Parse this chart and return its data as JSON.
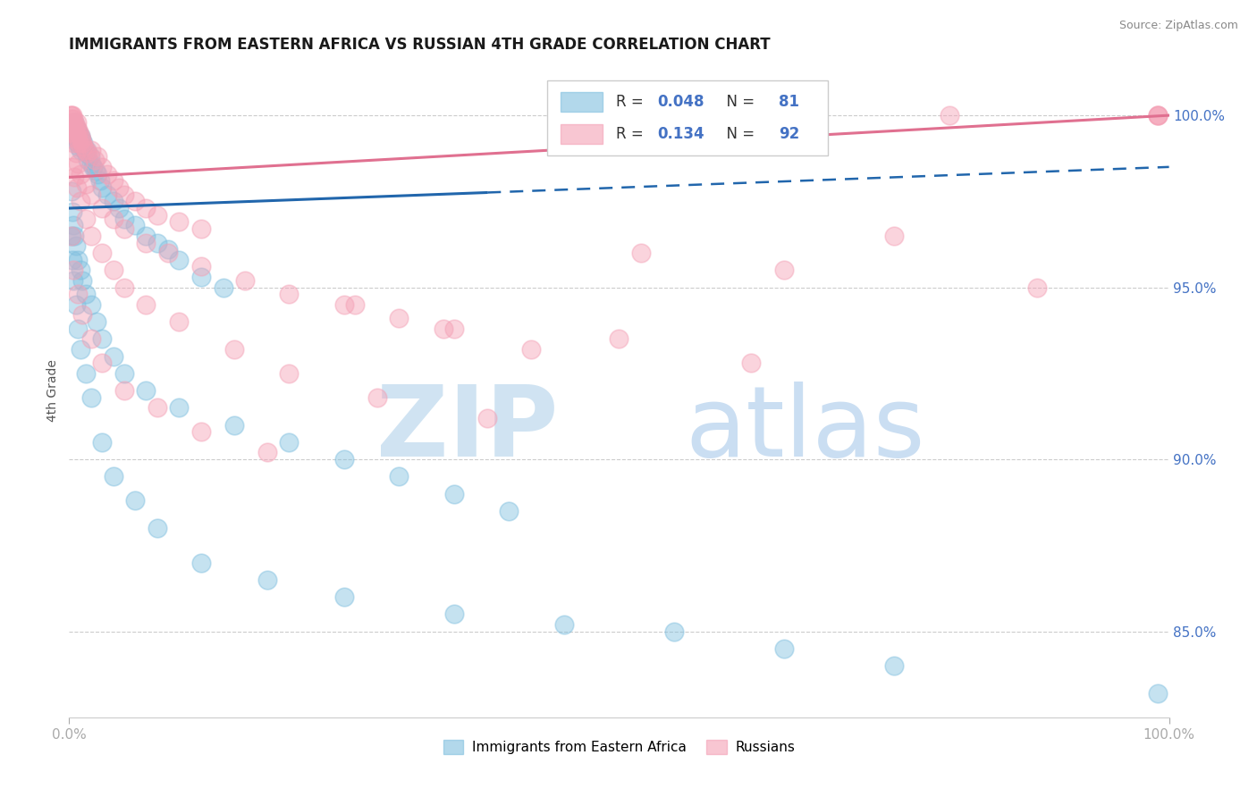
{
  "title": "IMMIGRANTS FROM EASTERN AFRICA VS RUSSIAN 4TH GRADE CORRELATION CHART",
  "source": "Source: ZipAtlas.com",
  "ylabel": "4th Grade",
  "watermark_zip": "ZIP",
  "watermark_atlas": "atlas",
  "blue_R": 0.048,
  "blue_N": 81,
  "pink_R": 0.134,
  "pink_N": 92,
  "blue_color": "#7fbfdf",
  "pink_color": "#f4a0b5",
  "blue_line_color": "#2166ac",
  "pink_line_color": "#e07090",
  "xlim": [
    0.0,
    100.0
  ],
  "ylim": [
    82.5,
    101.5
  ],
  "yticks": [
    85.0,
    90.0,
    95.0,
    100.0
  ],
  "ytick_labels": [
    "85.0%",
    "90.0%",
    "95.0%",
    "100.0%"
  ],
  "blue_line_start_x": 0.0,
  "blue_line_start_y": 97.3,
  "blue_line_end_x": 100.0,
  "blue_line_end_y": 98.5,
  "blue_solid_end_x": 38.0,
  "pink_line_start_x": 0.0,
  "pink_line_start_y": 98.2,
  "pink_line_end_x": 100.0,
  "pink_line_end_y": 100.0,
  "blue_scatter_x": [
    0.3,
    0.4,
    0.5,
    0.5,
    0.6,
    0.6,
    0.7,
    0.7,
    0.8,
    0.8,
    0.9,
    1.0,
    1.0,
    1.1,
    1.2,
    1.3,
    1.4,
    1.5,
    1.6,
    1.7,
    1.9,
    2.0,
    2.2,
    2.4,
    2.6,
    2.8,
    3.0,
    3.5,
    4.0,
    4.5,
    5.0,
    6.0,
    7.0,
    8.0,
    9.0,
    10.0,
    12.0,
    14.0,
    0.2,
    0.3,
    0.4,
    0.5,
    0.6,
    0.8,
    1.0,
    1.2,
    1.5,
    2.0,
    2.5,
    3.0,
    4.0,
    5.0,
    7.0,
    10.0,
    15.0,
    20.0,
    25.0,
    30.0,
    35.0,
    40.0,
    0.2,
    0.3,
    0.4,
    0.6,
    0.8,
    1.0,
    1.5,
    2.0,
    3.0,
    4.0,
    6.0,
    8.0,
    12.0,
    18.0,
    25.0,
    35.0,
    45.0,
    55.0,
    65.0,
    75.0,
    99.0
  ],
  "blue_scatter_y": [
    99.5,
    99.7,
    99.8,
    99.4,
    99.5,
    99.6,
    99.3,
    99.6,
    99.2,
    99.5,
    99.1,
    99.0,
    99.4,
    99.3,
    99.1,
    99.2,
    99.0,
    98.9,
    99.0,
    98.7,
    98.8,
    98.6,
    98.5,
    98.4,
    98.3,
    98.1,
    97.9,
    97.7,
    97.5,
    97.3,
    97.0,
    96.8,
    96.5,
    96.3,
    96.1,
    95.8,
    95.3,
    95.0,
    97.8,
    97.2,
    96.8,
    96.5,
    96.2,
    95.8,
    95.5,
    95.2,
    94.8,
    94.5,
    94.0,
    93.5,
    93.0,
    92.5,
    92.0,
    91.5,
    91.0,
    90.5,
    90.0,
    89.5,
    89.0,
    88.5,
    96.5,
    95.8,
    95.2,
    94.5,
    93.8,
    93.2,
    92.5,
    91.8,
    90.5,
    89.5,
    88.8,
    88.0,
    87.0,
    86.5,
    86.0,
    85.5,
    85.2,
    85.0,
    84.5,
    84.0,
    83.2
  ],
  "pink_scatter_x": [
    0.1,
    0.2,
    0.2,
    0.3,
    0.3,
    0.4,
    0.4,
    0.5,
    0.5,
    0.6,
    0.6,
    0.7,
    0.7,
    0.8,
    0.8,
    0.9,
    0.9,
    1.0,
    1.1,
    1.2,
    1.3,
    1.5,
    1.7,
    2.0,
    2.3,
    2.6,
    3.0,
    3.5,
    4.0,
    4.5,
    5.0,
    6.0,
    7.0,
    8.0,
    10.0,
    12.0,
    0.2,
    0.4,
    0.6,
    0.8,
    1.0,
    1.5,
    2.0,
    3.0,
    4.0,
    5.0,
    7.0,
    9.0,
    12.0,
    16.0,
    20.0,
    25.0,
    30.0,
    35.0,
    0.3,
    0.5,
    0.7,
    1.0,
    1.5,
    2.0,
    3.0,
    4.0,
    5.0,
    7.0,
    10.0,
    15.0,
    20.0,
    28.0,
    38.0,
    50.0,
    62.0,
    75.0,
    88.0,
    99.0,
    0.2,
    0.4,
    0.8,
    1.2,
    2.0,
    3.0,
    5.0,
    8.0,
    12.0,
    18.0,
    26.0,
    34.0,
    42.0,
    52.0,
    65.0,
    80.0,
    99.0,
    99.0
  ],
  "pink_scatter_y": [
    100.0,
    100.0,
    99.9,
    100.0,
    99.8,
    99.9,
    99.7,
    99.8,
    99.6,
    99.7,
    99.5,
    99.8,
    99.4,
    99.6,
    99.3,
    99.5,
    99.2,
    99.4,
    99.3,
    99.2,
    99.1,
    99.0,
    98.9,
    99.0,
    98.7,
    98.8,
    98.5,
    98.3,
    98.1,
    97.9,
    97.7,
    97.5,
    97.3,
    97.1,
    96.9,
    96.7,
    99.5,
    99.2,
    98.9,
    98.6,
    98.3,
    98.0,
    97.7,
    97.3,
    97.0,
    96.7,
    96.3,
    96.0,
    95.6,
    95.2,
    94.8,
    94.5,
    94.1,
    93.8,
    98.5,
    98.2,
    97.9,
    97.5,
    97.0,
    96.5,
    96.0,
    95.5,
    95.0,
    94.5,
    94.0,
    93.2,
    92.5,
    91.8,
    91.2,
    93.5,
    92.8,
    96.5,
    95.0,
    100.0,
    96.5,
    95.5,
    94.8,
    94.2,
    93.5,
    92.8,
    92.0,
    91.5,
    90.8,
    90.2,
    94.5,
    93.8,
    93.2,
    96.0,
    95.5,
    100.0,
    100.0,
    100.0
  ]
}
